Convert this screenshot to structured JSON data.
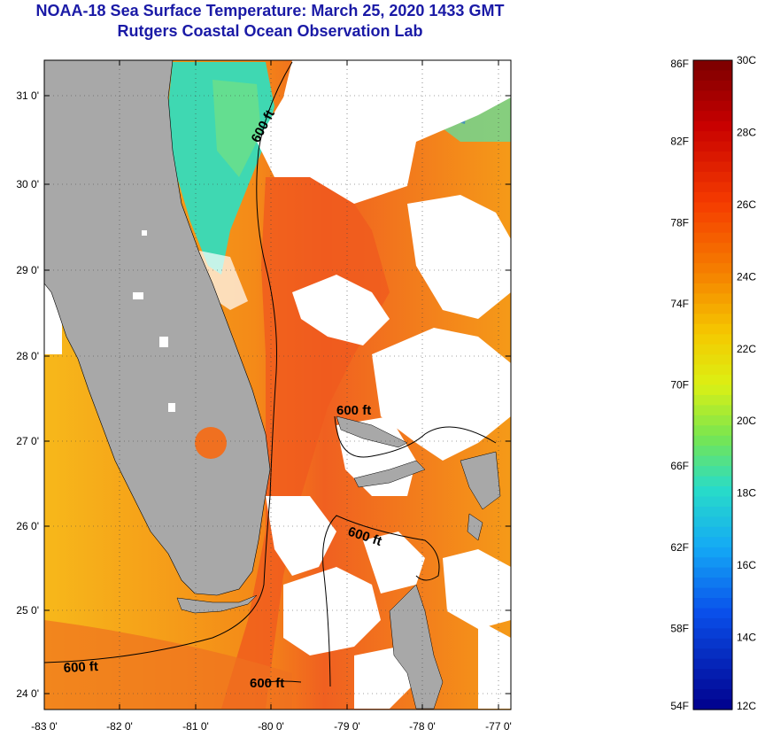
{
  "header": {
    "title": "NOAA-18 Sea Surface Temperature:  March 25, 2020 1433 GMT",
    "subtitle": "Rutgers Coastal Ocean Observation Lab"
  },
  "map": {
    "lat_ticks": [
      "31 0'",
      "30 0'",
      "29 0'",
      "28 0'",
      "27 0'",
      "26 0'",
      "25 0'",
      "24 0'"
    ],
    "lon_ticks": [
      "-83 0'",
      "-82 0'",
      "-81 0'",
      "-80 0'",
      "-79 0'",
      "-78 0'",
      "-77 0'"
    ],
    "contour_label": "600 ft",
    "colors": {
      "land": "#a8a8a8",
      "cloud": "#ffffff",
      "warm": "#f0641e",
      "mid": "#f5a015",
      "cool": "#40d8b0"
    }
  },
  "colorbar": {
    "fahrenheit": [
      "86F",
      "82F",
      "78F",
      "74F",
      "70F",
      "66F",
      "62F",
      "58F",
      "54F"
    ],
    "celsius": [
      "30C",
      "28C",
      "26C",
      "24C",
      "22C",
      "20C",
      "18C",
      "16C",
      "14C",
      "12C"
    ]
  }
}
